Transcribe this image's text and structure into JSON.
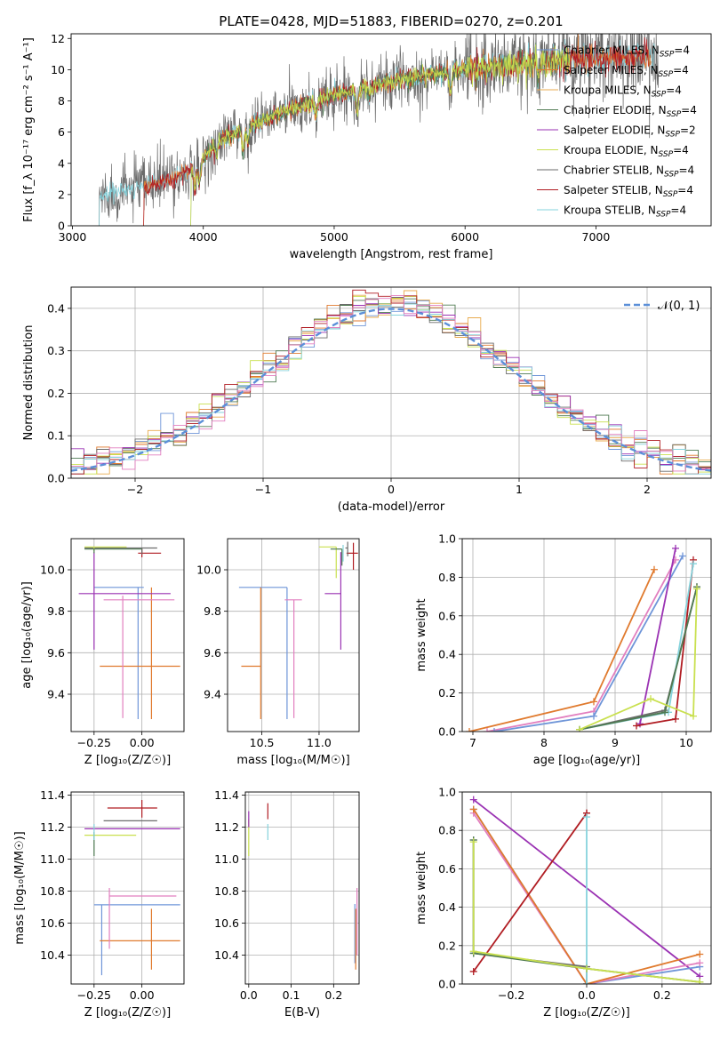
{
  "figure": {
    "title": "PLATE=0428, MJD=51883, FIBERID=0270, z=0.201"
  },
  "colors": {
    "Chabrier MILES": "#6f95d8",
    "Salpeter MILES": "#e07a2e",
    "Kroupa MILES": "#e8ab4f",
    "Chabrier ELODIE": "#4f7a52",
    "Salpeter ELODIE": "#9a32b3",
    "Kroupa ELODIE": "#c9e04f",
    "Chabrier STELIB": "#6b6b6b",
    "Salpeter STELIB": "#b01c22",
    "Kroupa STELIB": "#86d3dc",
    "extra_pink": "#e27fbf",
    "gaussian": "#5b8fd8",
    "grid": "#b0b0b0"
  },
  "chart_data": [
    {
      "type": "line",
      "panel": "spectrum",
      "xlabel": "wavelength [Angstrom, rest frame]",
      "ylabel": "Flux [f_λ 10⁻¹⁷ erg cm⁻² s⁻¹ A⁻¹]",
      "xlim": [
        2990,
        7880
      ],
      "ylim": [
        0,
        12.3
      ],
      "xticks": [
        3000,
        4000,
        5000,
        6000,
        7000
      ],
      "yticks": [
        0,
        2,
        4,
        6,
        8,
        10,
        12
      ],
      "grid": false,
      "legend_position": "upper-right",
      "legend": [
        {
          "name": "Chabrier MILES",
          "label": "Chabrier MILES, N_SSP=4"
        },
        {
          "name": "Salpeter MILES",
          "label": "Salpeter MILES, N_SSP=4"
        },
        {
          "name": "Kroupa MILES",
          "label": "Kroupa MILES, N_SSP=4"
        },
        {
          "name": "Chabrier ELODIE",
          "label": "Chabrier ELODIE, N_SSP=4"
        },
        {
          "name": "Salpeter ELODIE",
          "label": "Salpeter ELODIE, N_SSP=2"
        },
        {
          "name": "Kroupa ELODIE",
          "label": "Kroupa ELODIE, N_SSP=4"
        },
        {
          "name": "Chabrier STELIB",
          "label": "Chabrier STELIB, N_SSP=4"
        },
        {
          "name": "Salpeter STELIB",
          "label": "Salpeter STELIB, N_SSP=4"
        },
        {
          "name": "Kroupa STELIB",
          "label": "Kroupa STELIB, N_SSP=4"
        }
      ],
      "continuum": {
        "x": [
          3200,
          3400,
          3600,
          3800,
          3950,
          4100,
          4300,
          4600,
          5000,
          5400,
          5800,
          6200,
          6600,
          7000,
          7400
        ],
        "y": [
          1.9,
          2.3,
          2.6,
          3.2,
          3.8,
          5.3,
          6.2,
          7.2,
          8.4,
          9.2,
          9.8,
          10.2,
          10.5,
          10.7,
          10.9
        ]
      },
      "series_ranges": [
        {
          "name": "Chabrier STELIB",
          "x": [
            3200,
            7480
          ]
        },
        {
          "name": "Kroupa STELIB",
          "x": [
            3200,
            7450
          ]
        },
        {
          "name": "Salpeter MILES",
          "x": [
            3540,
            7420
          ]
        },
        {
          "name": "Salpeter STELIB",
          "x": [
            3540,
            7400
          ]
        },
        {
          "name": "Kroupa ELODIE",
          "x": [
            3900,
            6800
          ]
        },
        {
          "name": "Chabrier ELODIE",
          "x": [
            3900,
            6800
          ]
        }
      ]
    },
    {
      "type": "histogram",
      "panel": "residuals",
      "xlabel": "(data-model)/error",
      "ylabel": "Normed distribution",
      "xlim": [
        -2.5,
        2.5
      ],
      "ylim": [
        0,
        0.45
      ],
      "xticks": [
        -2,
        -1,
        0,
        1,
        2
      ],
      "yticks": [
        0.0,
        0.1,
        0.2,
        0.3,
        0.4
      ],
      "grid": true,
      "bin_width": 0.1,
      "legend_position": "upper-right",
      "gaussian_label": "𝒩(0, 1)"
    },
    {
      "type": "errorbar",
      "panel": "age-vs-Z",
      "xlabel": "Z [log₁₀(Z/Z☉)]",
      "ylabel": "age  [log₁₀(age/yr)]",
      "xlim": [
        -0.37,
        0.22
      ],
      "ylim": [
        9.22,
        10.15
      ],
      "xticks": [
        -0.25,
        0.0
      ],
      "yticks": [
        9.4,
        9.6,
        9.8,
        10.0
      ],
      "grid": true,
      "points": [
        {
          "name": "Chabrier MILES",
          "x": -0.02,
          "xerr": [
            0.23,
            0.03
          ],
          "y": 9.915,
          "yerr": [
            0.635,
            0
          ]
        },
        {
          "name": "Salpeter MILES",
          "x": 0.05,
          "xerr": [
            0.27,
            0.15
          ],
          "y": 9.535,
          "yerr": [
            0.255,
            0.38
          ]
        },
        {
          "name": "extra_pink",
          "x": -0.1,
          "xerr": [
            0.1,
            0.27
          ],
          "y": 9.855,
          "yerr": [
            0.57,
            0.02
          ]
        },
        {
          "name": "Salpeter ELODIE",
          "x": -0.25,
          "xerr": [
            0.08,
            0.4
          ],
          "y": 9.885,
          "yerr": [
            0.27,
            0.2
          ]
        },
        {
          "name": "Salpeter STELIB",
          "x": 0.0,
          "xerr": [
            0.02,
            0.1
          ],
          "y": 10.08,
          "yerr": [
            0.02,
            0.02
          ]
        },
        {
          "name": "Chabrier STELIB",
          "x": 0.0,
          "xerr": [
            0.3,
            0.08
          ],
          "y": 10.105,
          "yerr": [
            0.03,
            0.0
          ]
        },
        {
          "name": "Kroupa ELODIE",
          "x": -0.25,
          "xerr": [
            0.05,
            0.17
          ],
          "y": 10.11,
          "yerr": [
            0.02,
            0.0
          ]
        },
        {
          "name": "Chabrier ELODIE",
          "x": -0.25,
          "xerr": [
            0.05,
            0.25
          ],
          "y": 10.1,
          "yerr": [
            0.02,
            0.0
          ]
        }
      ]
    },
    {
      "type": "errorbar",
      "panel": "age-vs-mass",
      "xlabel": "mass [log₁₀(M/M☉)]",
      "ylabel": "",
      "xlim": [
        10.2,
        11.35
      ],
      "ylim": [
        9.22,
        10.15
      ],
      "xticks": [
        10.5,
        11.0
      ],
      "yticks": [
        9.4,
        9.6,
        9.8,
        10.0
      ],
      "grid": true,
      "points": [
        {
          "name": "Chabrier MILES",
          "x": 10.72,
          "xerr": [
            0.42,
            0.0
          ],
          "y": 9.915,
          "yerr": [
            0.635,
            0.0
          ]
        },
        {
          "name": "Salpeter MILES",
          "x": 10.49,
          "xerr": [
            0.17,
            0.0
          ],
          "y": 9.535,
          "yerr": [
            0.255,
            0.38
          ]
        },
        {
          "name": "extra_pink",
          "x": 10.78,
          "xerr": [
            0.08,
            0.07
          ],
          "y": 9.855,
          "yerr": [
            0.57,
            0.0
          ]
        },
        {
          "name": "Salpeter ELODIE",
          "x": 11.19,
          "xerr": [
            0.14,
            0.0
          ],
          "y": 9.885,
          "yerr": [
            0.27,
            0.2
          ]
        },
        {
          "name": "Salpeter STELIB",
          "x": 11.3,
          "xerr": [
            0.06,
            0.04
          ],
          "y": 10.08,
          "yerr": [
            0.08,
            0.05
          ]
        },
        {
          "name": "Chabrier STELIB",
          "x": 11.25,
          "xerr": [
            0.02,
            0.0
          ],
          "y": 10.105,
          "yerr": [
            0.04,
            0.03
          ]
        },
        {
          "name": "Kroupa ELODIE",
          "x": 11.15,
          "xerr": [
            0.15,
            0.0
          ],
          "y": 10.11,
          "yerr": [
            0.15,
            0.0
          ]
        },
        {
          "name": "Chabrier ELODIE",
          "x": 11.2,
          "xerr": [
            0.1,
            0.0
          ],
          "y": 10.1,
          "yerr": [
            0.08,
            0.0
          ]
        },
        {
          "name": "Kroupa STELIB",
          "x": 11.21,
          "xerr": [
            0.0,
            0.0
          ],
          "y": 10.1,
          "yerr": [
            0.06,
            0.02
          ]
        }
      ]
    },
    {
      "type": "line",
      "panel": "mass-weight-vs-age",
      "xlabel": "age  [log₁₀(age/yr)]",
      "ylabel": "mass weight",
      "xlim": [
        6.85,
        10.35
      ],
      "ylim": [
        0,
        1
      ],
      "xticks": [
        7,
        8,
        9,
        10
      ],
      "yticks": [
        0.0,
        0.2,
        0.4,
        0.6,
        0.8,
        1.0
      ],
      "grid": true,
      "series": [
        {
          "name": "Salpeter MILES",
          "x": [
            6.95,
            8.7,
            9.55
          ],
          "y": [
            0.0,
            0.155,
            0.84
          ]
        },
        {
          "name": "extra_pink",
          "x": [
            7.2,
            8.7,
            9.85
          ],
          "y": [
            0.0,
            0.105,
            0.89
          ]
        },
        {
          "name": "Chabrier MILES",
          "x": [
            7.3,
            8.7,
            9.95
          ],
          "y": [
            0.0,
            0.08,
            0.91
          ]
        },
        {
          "name": "Salpeter ELODIE",
          "x": [
            9.35,
            9.85
          ],
          "y": [
            0.04,
            0.95
          ]
        },
        {
          "name": "Salpeter STELIB",
          "x": [
            9.3,
            9.85,
            10.1
          ],
          "y": [
            0.03,
            0.065,
            0.89
          ]
        },
        {
          "name": "Chabrier STELIB",
          "x": [
            8.5,
            9.7,
            10.15
          ],
          "y": [
            0.01,
            0.11,
            0.75
          ]
        },
        {
          "name": "Kroupa STELIB",
          "x": [
            8.5,
            9.75,
            10.1
          ],
          "y": [
            0.01,
            0.1,
            0.87
          ]
        },
        {
          "name": "Chabrier ELODIE",
          "x": [
            8.5,
            9.7,
            10.15
          ],
          "y": [
            0.01,
            0.1,
            0.75
          ]
        },
        {
          "name": "Kroupa ELODIE",
          "x": [
            8.5,
            9.5,
            10.1,
            10.15
          ],
          "y": [
            0.01,
            0.17,
            0.08,
            0.74
          ]
        }
      ]
    },
    {
      "type": "errorbar",
      "panel": "mass-vs-Z",
      "xlabel": "Z [log₁₀(Z/Z☉)]",
      "ylabel": "mass [log₁₀(M/M☉)]",
      "xlim": [
        -0.37,
        0.22
      ],
      "ylim": [
        10.22,
        11.42
      ],
      "xticks": [
        -0.25,
        0.0
      ],
      "yticks": [
        10.4,
        10.6,
        10.8,
        11.0,
        11.2,
        11.4
      ],
      "grid": true,
      "points": [
        {
          "name": "Chabrier MILES",
          "x": -0.25,
          "xerr": [
            0.0,
            0.45
          ],
          "y": 10.715,
          "yerr": [
            0.0,
            0.0
          ]
        },
        {
          "name": "Chabrier MILES",
          "x": -0.21,
          "xerr": [
            0.0,
            0.0
          ],
          "y": 10.715,
          "yerr": [
            0.44,
            0.0
          ]
        },
        {
          "name": "Salpeter MILES",
          "x": 0.05,
          "xerr": [
            0.27,
            0.15
          ],
          "y": 10.49,
          "yerr": [
            0.18,
            0.2
          ]
        },
        {
          "name": "extra_pink",
          "x": -0.17,
          "xerr": [
            0.0,
            0.35
          ],
          "y": 10.77,
          "yerr": [
            0.0,
            0.05
          ]
        },
        {
          "name": "extra_pink",
          "x": -0.17,
          "xerr": [
            0.0,
            0.0
          ],
          "y": 10.77,
          "yerr": [
            0.33,
            0.0
          ]
        },
        {
          "name": "Salpeter ELODIE",
          "x": -0.25,
          "xerr": [
            0.05,
            0.45
          ],
          "y": 11.19,
          "yerr": [
            0.0,
            0.0
          ]
        },
        {
          "name": "Salpeter STELIB",
          "x": 0.0,
          "xerr": [
            0.18,
            0.08
          ],
          "y": 11.32,
          "yerr": [
            0.06,
            0.05
          ]
        },
        {
          "name": "Chabrier STELIB",
          "x": 0.0,
          "xerr": [
            0.2,
            0.08
          ],
          "y": 11.24,
          "yerr": [
            0.0,
            0.0
          ]
        },
        {
          "name": "Kroupa ELODIE",
          "x": -0.25,
          "xerr": [
            0.05,
            0.22
          ],
          "y": 11.15,
          "yerr": [
            0.0,
            0.0
          ]
        },
        {
          "name": "Chabrier ELODIE",
          "x": -0.25,
          "xerr": [
            0.0,
            0.0
          ],
          "y": 11.12,
          "yerr": [
            0.1,
            0.05
          ]
        },
        {
          "name": "Kroupa STELIB",
          "x": -0.25,
          "xerr": [
            0.0,
            0.0
          ],
          "y": 11.2,
          "yerr": [
            0.08,
            0.02
          ]
        }
      ]
    },
    {
      "type": "errorbar",
      "panel": "mass-vs-EBV",
      "xlabel": "E(B-V)",
      "ylabel": "",
      "xlim": [
        -0.008,
        0.26
      ],
      "ylim": [
        10.22,
        11.42
      ],
      "xticks": [
        0.0,
        0.1,
        0.2
      ],
      "yticks": [
        10.4,
        10.6,
        10.8,
        11.0,
        11.2,
        11.4
      ],
      "grid": true,
      "points": [
        {
          "name": "Kroupa ELODIE",
          "x": 0.0,
          "xerr": [
            0,
            0
          ],
          "y": 11.15,
          "yerr": [
            0.13,
            0.1
          ]
        },
        {
          "name": "Salpeter ELODIE",
          "x": 0.0,
          "xerr": [
            0,
            0
          ],
          "y": 11.2,
          "yerr": [
            0.0,
            0.1
          ]
        },
        {
          "name": "Salpeter STELIB",
          "x": 0.045,
          "xerr": [
            0,
            0
          ],
          "y": 11.3,
          "yerr": [
            0.05,
            0.05
          ]
        },
        {
          "name": "Kroupa STELIB",
          "x": 0.045,
          "xerr": [
            0,
            0
          ],
          "y": 11.2,
          "yerr": [
            0.08,
            0.02
          ]
        },
        {
          "name": "Chabrier MILES",
          "x": 0.25,
          "xerr": [
            0,
            0
          ],
          "y": 10.55,
          "yerr": [
            0.2,
            0.17
          ]
        },
        {
          "name": "Salpeter MILES",
          "x": 0.252,
          "xerr": [
            0,
            0
          ],
          "y": 10.49,
          "yerr": [
            0.18,
            0.2
          ]
        },
        {
          "name": "extra_pink",
          "x": 0.255,
          "xerr": [
            0,
            0
          ],
          "y": 10.7,
          "yerr": [
            0.3,
            0.12
          ]
        }
      ]
    },
    {
      "type": "line",
      "panel": "mass-weight-vs-Z",
      "xlabel": "Z [log₁₀(Z/Z☉)]",
      "ylabel": "mass weight",
      "xlim": [
        -0.33,
        0.33
      ],
      "ylim": [
        0,
        1
      ],
      "xticks": [
        -0.2,
        0.0,
        0.2
      ],
      "yticks": [
        0.0,
        0.2,
        0.4,
        0.6,
        0.8,
        1.0
      ],
      "grid": true,
      "series": [
        {
          "name": "Salpeter ELODIE",
          "x": [
            -0.3,
            0.3
          ],
          "y": [
            0.96,
            0.04
          ]
        },
        {
          "name": "Chabrier MILES",
          "x": [
            -0.3,
            0.0,
            0.3
          ],
          "y": [
            0.91,
            0.0,
            0.09
          ]
        },
        {
          "name": "extra_pink",
          "x": [
            -0.3,
            0.0,
            0.3
          ],
          "y": [
            0.89,
            0.0,
            0.11
          ]
        },
        {
          "name": "Salpeter MILES",
          "x": [
            -0.3,
            0.0,
            0.3
          ],
          "y": [
            0.91,
            0.0,
            0.155
          ]
        },
        {
          "name": "Salpeter STELIB",
          "x": [
            -0.3,
            0.0,
            0.0
          ],
          "y": [
            0.065,
            0.89,
            0.89
          ]
        },
        {
          "name": "Chabrier STELIB",
          "x": [
            -0.3,
            -0.3,
            0.0,
            0.0
          ],
          "y": [
            0.75,
            0.16,
            0.09,
            0.0
          ]
        },
        {
          "name": "Kroupa STELIB",
          "x": [
            0.0,
            0.0
          ],
          "y": [
            0.87,
            0.0
          ]
        },
        {
          "name": "Chabrier ELODIE",
          "x": [
            -0.3,
            -0.3,
            0.0,
            0.3
          ],
          "y": [
            0.75,
            0.16,
            0.08,
            0.01
          ]
        },
        {
          "name": "Kroupa ELODIE",
          "x": [
            -0.3,
            -0.3,
            0.0,
            0.3
          ],
          "y": [
            0.74,
            0.17,
            0.08,
            0.01
          ]
        }
      ]
    }
  ]
}
